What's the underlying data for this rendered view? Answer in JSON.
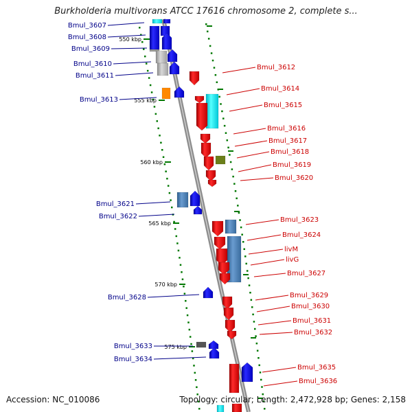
{
  "title": "Burkholderia multivorans ATCC 17616 chromosome 2, complete s...",
  "footer": {
    "accession": "Accession: NC_010086",
    "topology": "Topology: circular; Length: 2,472,928 bp; Genes: 2,158"
  },
  "colors": {
    "backbone": "#8e8e8e",
    "forward_gene": "#0000ee",
    "reverse_gene": "#ee0000",
    "left_label": "#000088",
    "right_label": "#cc0000",
    "tick": "#007700",
    "cds_blue": "#4a7eb5",
    "cds_gray": "#b0b0b0",
    "cds_cyan": "#00e5ee",
    "cds_orange": "#ff8800",
    "cds_olive": "#6b7f1a",
    "cds_dark": "#555555"
  },
  "ticks": [
    "550 kbp",
    "555 kbp",
    "560 kbp",
    "565 kbp",
    "570 kbp",
    "575 kbp"
  ],
  "genes_left": [
    "Bmul_3607",
    "Bmul_3608",
    "Bmul_3609",
    "Bmul_3610",
    "Bmul_3611",
    "Bmul_3613",
    "Bmul_3621",
    "Bmul_3622",
    "Bmul_3628",
    "Bmul_3633",
    "Bmul_3634"
  ],
  "genes_right": [
    "Bmul_3612",
    "Bmul_3614",
    "Bmul_3615",
    "Bmul_3616",
    "Bmul_3617",
    "Bmul_3618",
    "Bmul_3619",
    "Bmul_3620",
    "Bmul_3623",
    "Bmul_3624",
    "livM",
    "livG",
    "Bmul_3627",
    "Bmul_3629",
    "Bmul_3630",
    "Bmul_3631",
    "Bmul_3632",
    "Bmul_3635",
    "Bmul_3636"
  ]
}
